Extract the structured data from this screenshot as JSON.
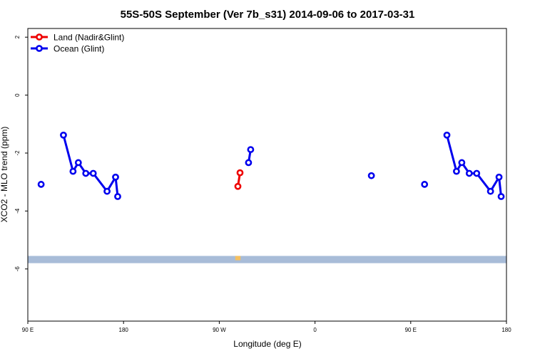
{
  "chart_data": {
    "type": "line",
    "title": "55S-50S September (Ver 7b_s31)   2014-09-06 to 2017-03-31",
    "xlabel": "Longitude (deg E)",
    "ylabel": "XCO2 - MLO trend (ppm)",
    "xlim": [
      90,
      540
    ],
    "ylim": [
      -7.8,
      2.3
    ],
    "x_ticks": [
      {
        "value": 90,
        "label": "90 E"
      },
      {
        "value": 180,
        "label": "180"
      },
      {
        "value": 270,
        "label": "90 W"
      },
      {
        "value": 360,
        "label": "0"
      },
      {
        "value": 450,
        "label": "90 E"
      },
      {
        "value": 540,
        "label": "180"
      }
    ],
    "y_ticks": [
      {
        "value": 2,
        "label": "2"
      },
      {
        "value": 0,
        "label": "0"
      },
      {
        "value": -2,
        "label": "-2"
      },
      {
        "value": -4,
        "label": "-4"
      },
      {
        "value": -6,
        "label": "-6"
      }
    ],
    "legend_position": "top-left",
    "series": [
      {
        "name": "Land (Nadir&Glint)",
        "color": "#ee0000",
        "segments": [
          [
            [
              287.5,
              -3.15
            ],
            [
              289.5,
              -2.68
            ]
          ]
        ]
      },
      {
        "name": "Ocean (Glint)",
        "color": "#0000ee",
        "segments": [
          [
            [
              102.5,
              -3.08
            ]
          ],
          [
            [
              123.5,
              -1.38
            ],
            [
              132.5,
              -2.63
            ],
            [
              137.5,
              -2.33
            ],
            [
              144.5,
              -2.7
            ],
            [
              151.5,
              -2.7
            ],
            [
              164.5,
              -3.32
            ],
            [
              172.5,
              -2.83
            ],
            [
              174.5,
              -3.5
            ]
          ],
          [
            [
              297.5,
              -2.33
            ],
            [
              299.5,
              -1.88
            ]
          ],
          [
            [
              413,
              -2.78
            ]
          ],
          [
            [
              463,
              -3.08
            ]
          ],
          [
            [
              484,
              -1.38
            ],
            [
              493,
              -2.63
            ],
            [
              498,
              -2.33
            ],
            [
              505,
              -2.7
            ],
            [
              512,
              -2.7
            ],
            [
              525,
              -3.32
            ],
            [
              533,
              -2.83
            ],
            [
              535,
              -3.5
            ]
          ]
        ]
      }
    ],
    "background_band": {
      "color": "#a8bcd8",
      "y_range": [
        -5.8,
        -5.55
      ],
      "highlight_color": "#f5c060",
      "highlight_x": [
        285,
        290
      ]
    }
  }
}
